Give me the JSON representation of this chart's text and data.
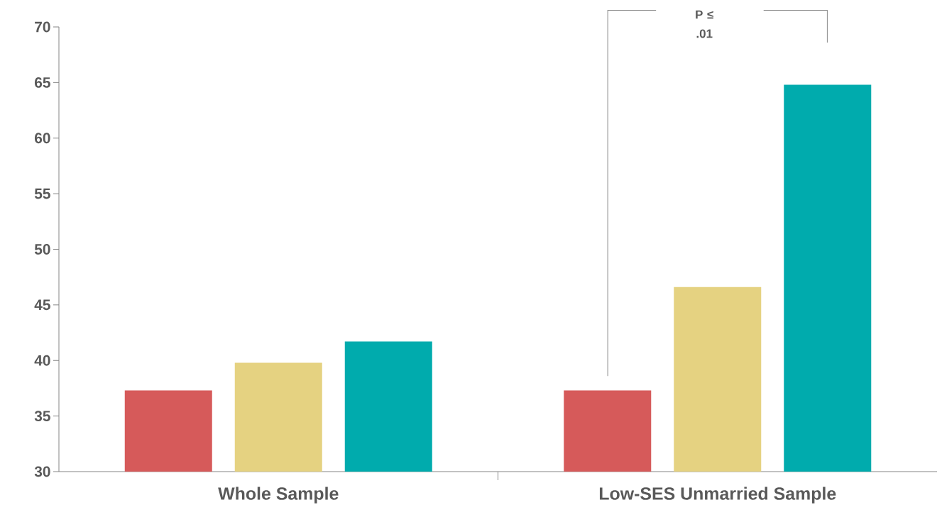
{
  "chart_data": {
    "type": "bar",
    "categories": [
      "Whole Sample",
      "Low-SES Unmarried Sample"
    ],
    "series": [
      {
        "color": "#d65a5a",
        "values": [
          37.3,
          37.3
        ]
      },
      {
        "color": "#e5d281",
        "values": [
          39.8,
          46.6
        ]
      },
      {
        "color": "#00abad",
        "values": [
          41.7,
          64.8
        ]
      }
    ],
    "ylim": [
      30,
      70
    ],
    "yticks": [
      30,
      35,
      40,
      45,
      50,
      55,
      60,
      65,
      70
    ],
    "grid": false,
    "annotations": [
      "P ≤ .01"
    ]
  }
}
